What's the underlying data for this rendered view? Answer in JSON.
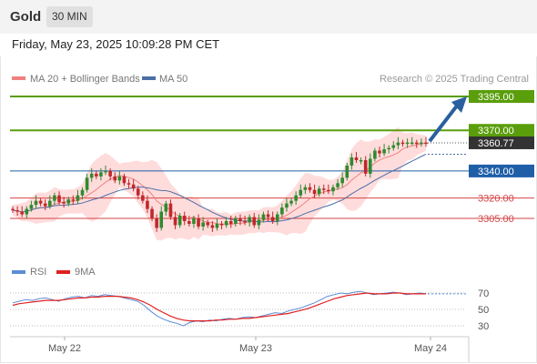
{
  "header": {
    "symbol": "Gold",
    "timeframe": "30 MIN"
  },
  "timestamp": "Friday, May 23, 2025 10:09:28 PM CET",
  "legend": {
    "ma20": "MA 20 + Bollinger Bands",
    "ma50": "MA 50",
    "copyright": "Research © 2025 Trading Central"
  },
  "rsi_legend": {
    "rsi": "RSI",
    "ma9": "9MA"
  },
  "colors": {
    "resistance": "#5a9e0c",
    "pivot": "#1f5fa8",
    "support": "#d64545",
    "bollinger": "#ffd0d0",
    "ma20": "#f08080",
    "ma50": "#4a6fa5",
    "rsi": "#5b8dd6",
    "rsi_ma": "#e02020",
    "bull": "#2f8a2f",
    "bear": "#c0282b",
    "arrow": "#2a5fa0"
  },
  "chart_data": {
    "type": "candlestick",
    "title": "Gold",
    "timeframe": "30 MIN",
    "ylim": [
      3290,
      3405
    ],
    "x_ticks": [
      "May 22",
      "May 23",
      "May 24"
    ],
    "levels": [
      {
        "value": 3395.0,
        "label": "3395.00",
        "kind": "resistance"
      },
      {
        "value": 3370.0,
        "label": "3370.00",
        "kind": "resistance"
      },
      {
        "value": 3340.0,
        "label": "3340.00",
        "kind": "pivot"
      },
      {
        "value": 3320.0,
        "label": "3320.00",
        "kind": "support"
      },
      {
        "value": 3305.0,
        "label": "3305.00",
        "kind": "support"
      }
    ],
    "current_price": {
      "value": 3360.77,
      "label": "3360.77"
    },
    "ohlc_close_path": [
      3311,
      3310,
      3308,
      3312,
      3315,
      3318,
      3316,
      3314,
      3318,
      3322,
      3317,
      3316,
      3319,
      3318,
      3322,
      3326,
      3335,
      3338,
      3336,
      3339,
      3340,
      3336,
      3333,
      3336,
      3331,
      3330,
      3327,
      3322,
      3318,
      3312,
      3305,
      3298,
      3310,
      3316,
      3306,
      3300,
      3307,
      3303,
      3301,
      3305,
      3299,
      3302,
      3300,
      3298,
      3301,
      3300,
      3303,
      3301,
      3305,
      3303,
      3302,
      3306,
      3300,
      3304,
      3308,
      3306,
      3303,
      3308,
      3313,
      3316,
      3318,
      3322,
      3326,
      3328,
      3326,
      3323,
      3327,
      3326,
      3325,
      3328,
      3331,
      3335,
      3344,
      3350,
      3348,
      3348,
      3338,
      3349,
      3355,
      3353,
      3356,
      3357,
      3359,
      3361,
      3360,
      3361,
      3361,
      3360,
      3361,
      3360.77
    ],
    "rsi": {
      "levels": [
        70,
        50,
        30
      ],
      "rsi_values": [
        58,
        60,
        62,
        61,
        63,
        64,
        62,
        60,
        63,
        65,
        66,
        64,
        67,
        66,
        68,
        67,
        66,
        64,
        62,
        60,
        55,
        48,
        42,
        38,
        35,
        33,
        30,
        34,
        36,
        35,
        37,
        36,
        38,
        39,
        38,
        40,
        41,
        40,
        42,
        44,
        46,
        45,
        48,
        50,
        52,
        55,
        58,
        62,
        66,
        68,
        70,
        69,
        71,
        72,
        70,
        68,
        69,
        70,
        71,
        70,
        68,
        69,
        70,
        69
      ],
      "ma_values": [
        55,
        57,
        58,
        59,
        60,
        61,
        61,
        61,
        62,
        63,
        64,
        64,
        65,
        65,
        66,
        66,
        66,
        65,
        64,
        62,
        59,
        55,
        50,
        46,
        42,
        39,
        37,
        36,
        36,
        36,
        36,
        37,
        37,
        38,
        38,
        39,
        39,
        40,
        41,
        42,
        43,
        44,
        45,
        47,
        49,
        51,
        54,
        57,
        60,
        63,
        65,
        67,
        68,
        69,
        70,
        69,
        69,
        69,
        70,
        70,
        69,
        69,
        69,
        69
      ]
    }
  }
}
